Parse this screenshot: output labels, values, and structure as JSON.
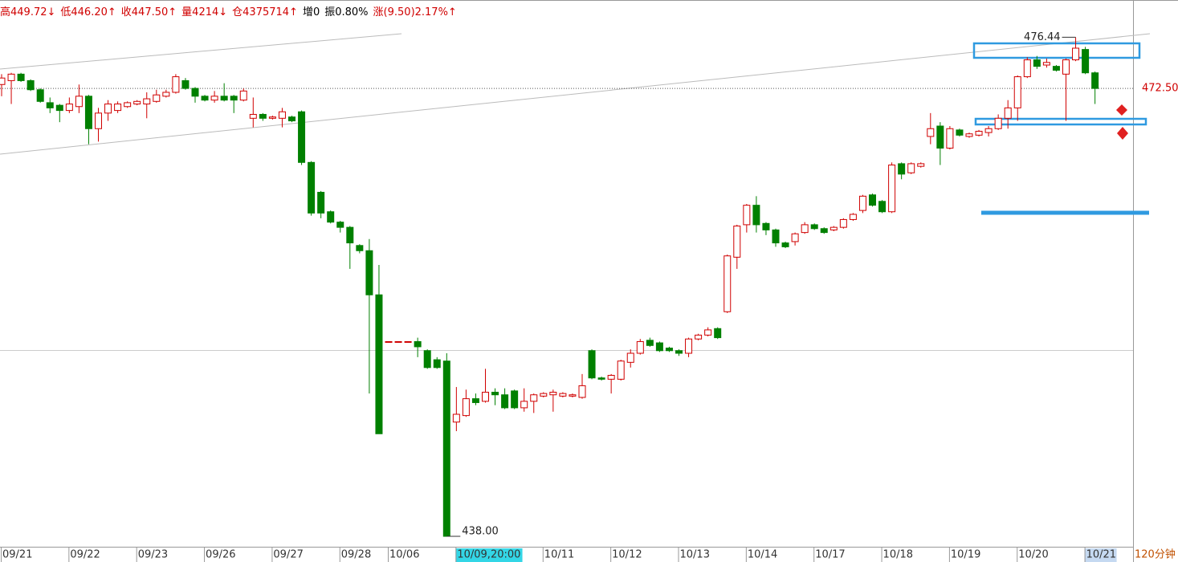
{
  "header": {
    "items": [
      {
        "text": "高449.72↓",
        "color": "#d00000"
      },
      {
        "text": "低446.20↑",
        "color": "#d00000"
      },
      {
        "text": "收447.50↑",
        "color": "#d00000"
      },
      {
        "text": "量4214↓",
        "color": "#d00000"
      },
      {
        "text": "仓4375714↑",
        "color": "#d00000"
      },
      {
        "text": "增0",
        "color": "#000000"
      },
      {
        "text": "振0.80%",
        "color": "#000000"
      },
      {
        "text": "涨(9.50)2.17%↑",
        "color": "#d00000"
      }
    ]
  },
  "chart_data": {
    "type": "candlestick",
    "period_label": "120分钟",
    "up_color": "#d00000",
    "down_color": "#008000",
    "ylim": [
      437.32,
      479.31
    ],
    "last_price": {
      "value": 472.5,
      "label": "472.50"
    },
    "max_label": "476.44",
    "min_label": "438.00",
    "categories": [
      "09/21",
      null,
      null,
      null,
      null,
      null,
      null,
      "09/22",
      null,
      null,
      null,
      null,
      null,
      null,
      "09/23",
      null,
      null,
      null,
      null,
      null,
      null,
      "09/26",
      null,
      null,
      null,
      null,
      null,
      null,
      "09/27",
      null,
      null,
      null,
      null,
      null,
      null,
      "09/28",
      null,
      null,
      null,
      null,
      "10/06",
      null,
      null,
      null,
      null,
      null,
      null,
      "10/09,20:00",
      null,
      null,
      null,
      null,
      null,
      null,
      null,
      null,
      "10/11",
      null,
      null,
      null,
      null,
      null,
      null,
      "10/12",
      null,
      null,
      null,
      null,
      null,
      null,
      "10/13",
      null,
      null,
      null,
      null,
      null,
      null,
      "10/14",
      null,
      null,
      null,
      null,
      null,
      null,
      "10/17",
      null,
      null,
      null,
      null,
      null,
      null,
      "10/18",
      null,
      null,
      null,
      null,
      null,
      null,
      "10/19",
      null,
      null,
      null,
      null,
      null,
      null,
      "10/20",
      null,
      null,
      null,
      null,
      null,
      null,
      "10/21",
      null
    ],
    "ohlc": [
      [
        472.8,
        473.6,
        471.9,
        473.3
      ],
      [
        473.1,
        473.7,
        471.3,
        473.6
      ],
      [
        473.6,
        473.7,
        473.0,
        473.1
      ],
      [
        473.1,
        473.2,
        472.3,
        472.4
      ],
      [
        472.4,
        472.5,
        471.4,
        471.5
      ],
      [
        471.4,
        471.8,
        470.6,
        471.0
      ],
      [
        471.2,
        471.3,
        469.9,
        470.8
      ],
      [
        470.8,
        471.8,
        470.6,
        471.3
      ],
      [
        471.1,
        472.8,
        470.6,
        471.9
      ],
      [
        471.9,
        472.0,
        468.2,
        469.4
      ],
      [
        469.4,
        471.0,
        468.4,
        470.6
      ],
      [
        470.6,
        471.6,
        470.0,
        471.3
      ],
      [
        470.8,
        471.5,
        470.6,
        471.3
      ],
      [
        471.1,
        471.5,
        471.0,
        471.4
      ],
      [
        471.3,
        471.6,
        471.2,
        471.5
      ],
      [
        471.3,
        472.2,
        470.2,
        471.7
      ],
      [
        471.5,
        472.4,
        471.4,
        472.0
      ],
      [
        471.9,
        472.4,
        471.8,
        472.2
      ],
      [
        472.2,
        473.6,
        472.1,
        473.4
      ],
      [
        473.1,
        473.3,
        472.4,
        472.5
      ],
      [
        472.5,
        472.6,
        471.4,
        471.9
      ],
      [
        471.9,
        472.0,
        471.5,
        471.6
      ],
      [
        471.6,
        472.3,
        471.4,
        471.9
      ],
      [
        471.9,
        472.9,
        471.5,
        471.6
      ],
      [
        471.9,
        472.0,
        470.6,
        471.6
      ],
      [
        471.6,
        472.5,
        471.5,
        472.3
      ],
      [
        470.2,
        471.8,
        469.5,
        470.5
      ],
      [
        470.5,
        470.6,
        470.0,
        470.2
      ],
      [
        470.2,
        470.4,
        470.1,
        470.3
      ],
      [
        470.2,
        471.0,
        469.5,
        470.7
      ],
      [
        470.3,
        470.4,
        469.9,
        470.0
      ],
      [
        470.7,
        470.8,
        466.6,
        466.8
      ],
      [
        466.8,
        466.9,
        462.7,
        462.9
      ],
      [
        464.5,
        464.6,
        462.5,
        462.9
      ],
      [
        463.0,
        463.1,
        462.1,
        462.2
      ],
      [
        462.2,
        462.3,
        461.4,
        461.8
      ],
      [
        461.8,
        461.9,
        458.6,
        460.6
      ],
      [
        460.4,
        460.5,
        459.8,
        460.0
      ],
      [
        460.0,
        460.9,
        449.0,
        456.6
      ],
      [
        456.6,
        458.9,
        445.9,
        445.9
      ],
      [
        453,
        453,
        453,
        453
      ],
      [
        453,
        453,
        453,
        453
      ],
      [
        453,
        453,
        453,
        453
      ],
      [
        453.0,
        453.3,
        451.8,
        452.6
      ],
      [
        452.3,
        452.4,
        450.9,
        451.0
      ],
      [
        451.6,
        451.8,
        450.9,
        451.0
      ],
      [
        451.5,
        452.1,
        438,
        438
      ],
      [
        446.8,
        449.5,
        446.1,
        447.4
      ],
      [
        447.3,
        449.3,
        447.2,
        448.6
      ],
      [
        448.6,
        449.0,
        448.1,
        448.3
      ],
      [
        448.4,
        450.9,
        448.3,
        449.1
      ],
      [
        449.1,
        449.4,
        448.1,
        448.9
      ],
      [
        448.9,
        449.4,
        447.8,
        447.9
      ],
      [
        449.2,
        449.3,
        447.8,
        447.9
      ],
      [
        447.9,
        449.4,
        447.6,
        448.4
      ],
      [
        448.4,
        449.0,
        447.5,
        448.9
      ],
      [
        448.8,
        449.1,
        448.7,
        449.0
      ],
      [
        448.9,
        449.3,
        447.6,
        449.1
      ],
      [
        448.8,
        449.1,
        448.7,
        449.0
      ],
      [
        448.8,
        449.0,
        448.7,
        448.9
      ],
      [
        448.7,
        450.5,
        448.6,
        449.6
      ],
      [
        452.3,
        452.4,
        450.1,
        450.2
      ],
      [
        450.2,
        450.3,
        450.0,
        450.1
      ],
      [
        450.1,
        450.5,
        449.0,
        450.4
      ],
      [
        450.1,
        451.6,
        450.0,
        451.5
      ],
      [
        451.4,
        452.4,
        451.0,
        452.1
      ],
      [
        452.1,
        453.2,
        452.0,
        453.0
      ],
      [
        453.1,
        453.3,
        452.6,
        452.7
      ],
      [
        452.9,
        453.0,
        452.2,
        452.3
      ],
      [
        452.5,
        452.6,
        452.2,
        452.3
      ],
      [
        452.3,
        452.4,
        451.9,
        452.1
      ],
      [
        452.1,
        453.3,
        451.8,
        453.2
      ],
      [
        453.2,
        453.6,
        453.1,
        453.5
      ],
      [
        453.5,
        454.1,
        453.4,
        453.9
      ],
      [
        454.0,
        454.1,
        453.2,
        453.3
      ],
      [
        455.3,
        459.7,
        455.2,
        459.6
      ],
      [
        459.5,
        462.0,
        458.6,
        461.9
      ],
      [
        462.0,
        463.6,
        461.4,
        463.5
      ],
      [
        463.5,
        464.2,
        461.4,
        462.0
      ],
      [
        462.1,
        462.2,
        461.2,
        461.6
      ],
      [
        461.6,
        461.7,
        460.3,
        460.6
      ],
      [
        460.6,
        460.7,
        460.2,
        460.3
      ],
      [
        460.7,
        461.4,
        460.4,
        461.3
      ],
      [
        461.4,
        462.2,
        461.3,
        462.0
      ],
      [
        462.0,
        462.1,
        461.6,
        461.7
      ],
      [
        461.7,
        461.8,
        461.3,
        461.4
      ],
      [
        461.6,
        461.9,
        461.5,
        461.8
      ],
      [
        461.8,
        462.5,
        461.7,
        462.4
      ],
      [
        462.4,
        462.9,
        462.3,
        462.8
      ],
      [
        463.1,
        464.3,
        462.9,
        464.2
      ],
      [
        464.3,
        464.4,
        463.4,
        463.5
      ],
      [
        463.8,
        463.9,
        462.9,
        463.0
      ],
      [
        463.0,
        466.8,
        462.9,
        466.6
      ],
      [
        466.7,
        466.8,
        465.5,
        465.9
      ],
      [
        466.0,
        466.8,
        465.9,
        466.7
      ],
      [
        466.5,
        466.8,
        466.4,
        466.7
      ],
      [
        468.8,
        470.6,
        468.2,
        469.4
      ],
      [
        469.6,
        469.9,
        466.6,
        467.9
      ],
      [
        467.9,
        469.6,
        467.8,
        469.4
      ],
      [
        469.3,
        469.4,
        468.8,
        468.9
      ],
      [
        468.8,
        469.1,
        468.7,
        469.0
      ],
      [
        468.9,
        469.3,
        468.8,
        469.2
      ],
      [
        469.1,
        469.6,
        468.8,
        469.4
      ],
      [
        469.4,
        470.5,
        469.3,
        470.2
      ],
      [
        470.2,
        471.6,
        469.4,
        471.0
      ],
      [
        471.0,
        473.5,
        470.0,
        473.4
      ],
      [
        473.4,
        474.9,
        473.3,
        474.7
      ],
      [
        474.7,
        475.0,
        474.0,
        474.2
      ],
      [
        474.3,
        474.8,
        474.1,
        474.5
      ],
      [
        474.2,
        474.3,
        473.8,
        473.9
      ],
      [
        473.6,
        474.8,
        470.0,
        474.7
      ],
      [
        474.7,
        476.44,
        474.6,
        475.6
      ],
      [
        475.5,
        475.7,
        473.6,
        473.7
      ],
      [
        473.7,
        473.8,
        471.3,
        472.5
      ]
    ]
  }
}
